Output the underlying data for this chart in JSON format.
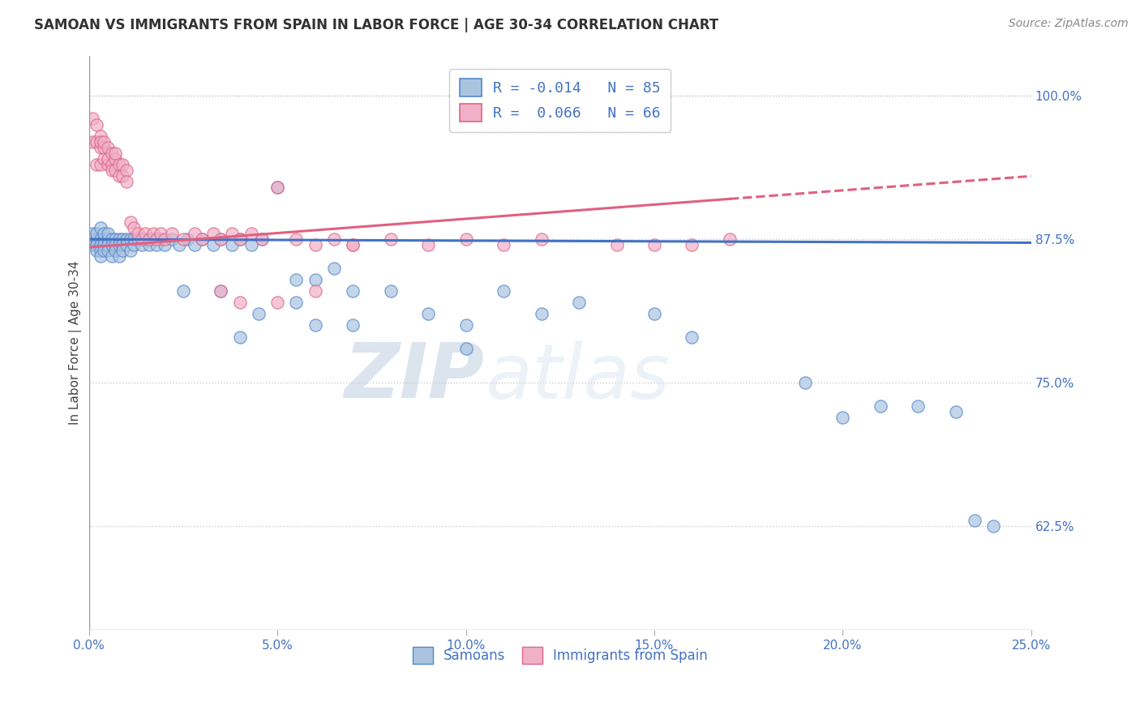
{
  "title": "SAMOAN VS IMMIGRANTS FROM SPAIN IN LABOR FORCE | AGE 30-34 CORRELATION CHART",
  "source": "Source: ZipAtlas.com",
  "ylabel": "In Labor Force | Age 30-34",
  "xlim": [
    0.0,
    0.25
  ],
  "ylim": [
    0.535,
    1.035
  ],
  "yticks_right": [
    0.625,
    0.75,
    0.875,
    1.0
  ],
  "ytick_labels_right": [
    "62.5%",
    "75.0%",
    "87.5%",
    "100.0%"
  ],
  "legend_entries": [
    {
      "label": "R = -0.014   N = 85"
    },
    {
      "label": "R =  0.066   N = 66"
    }
  ],
  "legend_bottom": [
    "Samoans",
    "Immigrants from Spain"
  ],
  "blue_scatter_color": "#aac4e0",
  "pink_scatter_color": "#f0b0c8",
  "blue_edge_color": "#5588cc",
  "pink_edge_color": "#dd6688",
  "blue_line_color": "#4472c4",
  "pink_line_color": "#e06080",
  "background_color": "#ffffff",
  "grid_color": "#cccccc",
  "watermark": "ZIPatlas",
  "blue_x": [
    0.001,
    0.001,
    0.001,
    0.002,
    0.002,
    0.002,
    0.002,
    0.003,
    0.003,
    0.003,
    0.003,
    0.003,
    0.004,
    0.004,
    0.004,
    0.004,
    0.005,
    0.005,
    0.005,
    0.005,
    0.006,
    0.006,
    0.006,
    0.007,
    0.007,
    0.007,
    0.008,
    0.008,
    0.008,
    0.009,
    0.009,
    0.009,
    0.01,
    0.01,
    0.011,
    0.011,
    0.012,
    0.012,
    0.013,
    0.014,
    0.015,
    0.016,
    0.017,
    0.018,
    0.019,
    0.02,
    0.022,
    0.024,
    0.026,
    0.028,
    0.03,
    0.033,
    0.035,
    0.038,
    0.04,
    0.043,
    0.046,
    0.05,
    0.055,
    0.06,
    0.065,
    0.07,
    0.08,
    0.09,
    0.1,
    0.11,
    0.12,
    0.13,
    0.15,
    0.16,
    0.1,
    0.055,
    0.07,
    0.04,
    0.06,
    0.035,
    0.045,
    0.025,
    0.19,
    0.2,
    0.21,
    0.22,
    0.23,
    0.235,
    0.24
  ],
  "blue_y": [
    0.875,
    0.88,
    0.87,
    0.875,
    0.88,
    0.87,
    0.865,
    0.875,
    0.87,
    0.865,
    0.885,
    0.86,
    0.875,
    0.87,
    0.865,
    0.88,
    0.875,
    0.87,
    0.865,
    0.88,
    0.875,
    0.87,
    0.86,
    0.875,
    0.87,
    0.865,
    0.875,
    0.87,
    0.86,
    0.875,
    0.87,
    0.865,
    0.875,
    0.87,
    0.875,
    0.865,
    0.875,
    0.87,
    0.875,
    0.87,
    0.875,
    0.87,
    0.875,
    0.87,
    0.875,
    0.87,
    0.875,
    0.87,
    0.875,
    0.87,
    0.875,
    0.87,
    0.875,
    0.87,
    0.875,
    0.87,
    0.875,
    0.92,
    0.84,
    0.84,
    0.85,
    0.83,
    0.83,
    0.81,
    0.8,
    0.83,
    0.81,
    0.82,
    0.81,
    0.79,
    0.78,
    0.82,
    0.8,
    0.79,
    0.8,
    0.83,
    0.81,
    0.83,
    0.75,
    0.72,
    0.73,
    0.73,
    0.725,
    0.63,
    0.625
  ],
  "pink_x": [
    0.001,
    0.001,
    0.002,
    0.002,
    0.002,
    0.003,
    0.003,
    0.003,
    0.003,
    0.004,
    0.004,
    0.004,
    0.005,
    0.005,
    0.005,
    0.006,
    0.006,
    0.006,
    0.007,
    0.007,
    0.007,
    0.008,
    0.008,
    0.009,
    0.009,
    0.01,
    0.01,
    0.011,
    0.012,
    0.013,
    0.014,
    0.015,
    0.016,
    0.017,
    0.018,
    0.019,
    0.02,
    0.022,
    0.025,
    0.028,
    0.03,
    0.033,
    0.035,
    0.038,
    0.04,
    0.043,
    0.046,
    0.05,
    0.055,
    0.06,
    0.065,
    0.07,
    0.08,
    0.09,
    0.1,
    0.11,
    0.12,
    0.15,
    0.17,
    0.035,
    0.04,
    0.05,
    0.06,
    0.07,
    0.14,
    0.16
  ],
  "pink_y": [
    0.98,
    0.96,
    0.975,
    0.96,
    0.94,
    0.965,
    0.955,
    0.94,
    0.96,
    0.945,
    0.955,
    0.96,
    0.94,
    0.955,
    0.945,
    0.94,
    0.95,
    0.935,
    0.945,
    0.935,
    0.95,
    0.94,
    0.93,
    0.94,
    0.93,
    0.935,
    0.925,
    0.89,
    0.885,
    0.88,
    0.875,
    0.88,
    0.875,
    0.88,
    0.875,
    0.88,
    0.875,
    0.88,
    0.875,
    0.88,
    0.875,
    0.88,
    0.875,
    0.88,
    0.875,
    0.88,
    0.875,
    0.92,
    0.875,
    0.87,
    0.875,
    0.87,
    0.875,
    0.87,
    0.875,
    0.87,
    0.875,
    0.87,
    0.875,
    0.83,
    0.82,
    0.82,
    0.83,
    0.87,
    0.87,
    0.87
  ],
  "blue_line_x0": 0.0,
  "blue_line_x1": 0.25,
  "blue_line_y0": 0.875,
  "blue_line_y1": 0.872,
  "pink_line_x0": 0.0,
  "pink_line_x1": 0.25,
  "pink_line_y0": 0.868,
  "pink_line_y1": 0.93
}
